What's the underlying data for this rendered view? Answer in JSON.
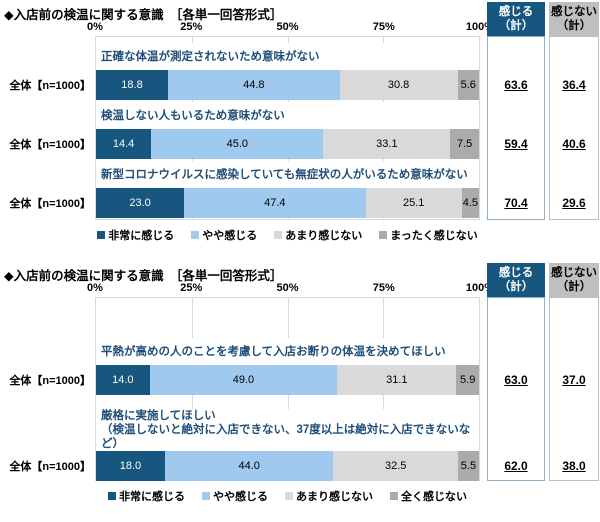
{
  "colors": {
    "segments": [
      "#17567F",
      "#9FC9EE",
      "#D9D9D9",
      "#ABABAB"
    ],
    "segment_value_text": [
      "#FFFFFF",
      "#000000",
      "#000000",
      "#000000"
    ],
    "question_text": "#1F4E79",
    "grid_line": "#D9D9D9",
    "feel_header_bg": "#17567F",
    "feel_header_text": "#FFFFFF",
    "not_feel_header_bg": "#BFBFBF",
    "not_feel_header_text": "#000000",
    "feel_box_border": "#8FB0CC",
    "not_feel_box_border": "#BFBFBF"
  },
  "chart_data": [
    {
      "type": "bar",
      "stacked": true,
      "orientation": "horizontal",
      "title": "◆入店前の検温に関する意識　［各単一回答形式］",
      "x_axis_ticks": [
        "0%",
        "25%",
        "50%",
        "75%",
        "100%"
      ],
      "xlim": [
        0,
        100
      ],
      "grid": true,
      "legend_position": "bottom",
      "legend": [
        "非常に感じる",
        "やや感じる",
        "あまり感じない",
        "まったく感じない"
      ],
      "summary_headers": [
        "感じる\n（計）",
        "感じない\n（計）"
      ],
      "rows": [
        {
          "category": "全体【n=1000】",
          "question": "正確な体温が測定されないため意味がない",
          "values": [
            18.8,
            44.8,
            30.8,
            5.6
          ],
          "summaries": [
            "63.6",
            "36.4"
          ]
        },
        {
          "category": "全体【n=1000】",
          "question": "検温しない人もいるため意味がない",
          "values": [
            14.4,
            45.0,
            33.1,
            7.5
          ],
          "summaries": [
            "59.4",
            "40.6"
          ]
        },
        {
          "category": "全体【n=1000】",
          "question": "新型コロナウイルスに感染していても無症状の人がいるため意味がない",
          "values": [
            23.0,
            47.4,
            25.1,
            4.5
          ],
          "summaries": [
            "70.4",
            "29.6"
          ]
        }
      ]
    },
    {
      "type": "bar",
      "stacked": true,
      "orientation": "horizontal",
      "title": "◆入店前の検温に関する意識　［各単一回答形式］",
      "x_axis_ticks": [
        "0%",
        "25%",
        "50%",
        "75%",
        "100%"
      ],
      "xlim": [
        0,
        100
      ],
      "grid": true,
      "legend_position": "bottom",
      "legend": [
        "非常に感じる",
        "やや感じる",
        "あまり感じない",
        "全く感じない"
      ],
      "summary_headers": [
        "感じる\n（計）",
        "感じない\n（計）"
      ],
      "rows": [
        {
          "category": "全体【n=1000】",
          "question": "平熱が高めの人のことを考慮して入店お断りの体温を決めてほしい",
          "values": [
            14.0,
            49.0,
            31.1,
            5.9
          ],
          "summaries": [
            "63.0",
            "37.0"
          ]
        },
        {
          "category": "全体【n=1000】",
          "question": "厳格に実施してほしい\n（検温しないと絶対に入店できない、37度以上は絶対に入店できないなど）",
          "values": [
            18.0,
            44.0,
            32.5,
            5.5
          ],
          "summaries": [
            "62.0",
            "38.0"
          ]
        }
      ]
    }
  ]
}
